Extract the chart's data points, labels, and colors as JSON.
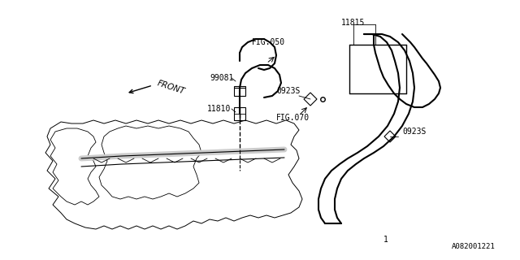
{
  "bg_color": "#ffffff",
  "line_color": "#000000",
  "fig_width": 6.4,
  "fig_height": 3.2,
  "dpi": 100,
  "label_texts": {
    "FIG050": "FIG.050",
    "99081": "99081",
    "11810": "11810",
    "FIG070": "FIG.070",
    "11815": "11815",
    "0923S_top": "0923S",
    "0923S_bot": "0923S",
    "FRONT": "FRONT",
    "watermark": "A082001221",
    "num1": "1"
  },
  "label_fontsize": 7,
  "watermark_fontsize": 6.5,
  "front_fontsize": 7.5
}
